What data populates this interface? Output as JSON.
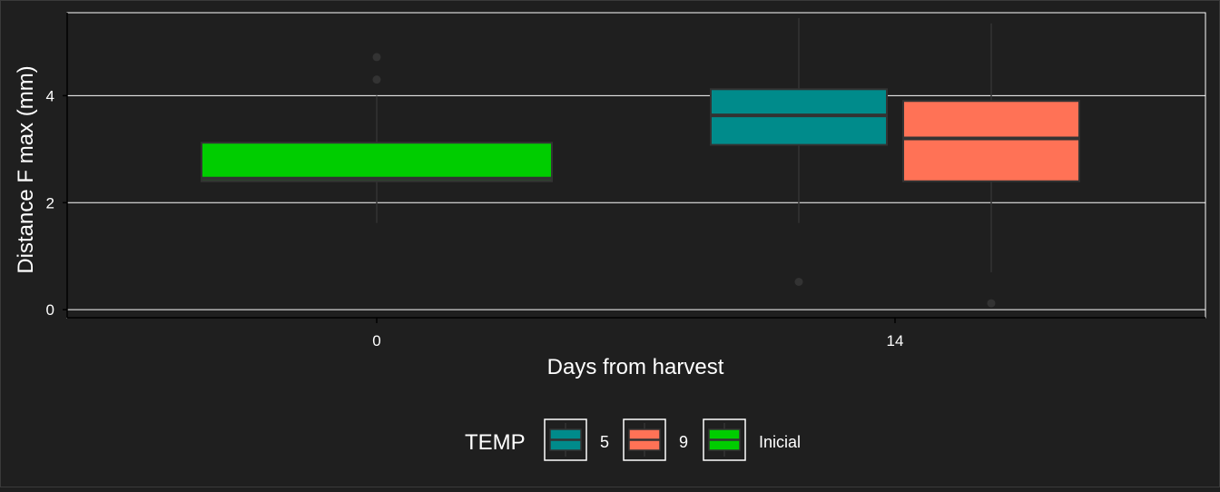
{
  "chart_data": {
    "type": "boxplot",
    "xlabel": "Days from harvest",
    "ylabel": "Distance F max (mm)",
    "x_ticks": [
      "0",
      "14"
    ],
    "y_ticks": [
      0,
      2,
      4
    ],
    "ylim": [
      -0.15,
      5.55
    ],
    "grid": "horizontal major lines",
    "legend": {
      "title": "TEMP",
      "position": "bottom",
      "entries": [
        {
          "label": "5",
          "color": "#008b8b"
        },
        {
          "label": "9",
          "color": "#ff7256"
        },
        {
          "label": "Inicial",
          "color": "#00cd00"
        }
      ]
    },
    "boxes": [
      {
        "x": "0",
        "group": "Inicial",
        "color": "#00cd00",
        "whisker_low": 1.62,
        "q1": 2.4,
        "median": 2.45,
        "q3": 3.12,
        "whisker_high": 4.0,
        "outliers": [
          4.3,
          4.72
        ]
      },
      {
        "x": "14",
        "group": "5",
        "color": "#008b8b",
        "whisker_low": 1.62,
        "q1": 3.08,
        "median": 3.63,
        "q3": 4.12,
        "whisker_high": 5.45,
        "outliers": [
          0.52
        ]
      },
      {
        "x": "14",
        "group": "9",
        "color": "#ff7256",
        "whisker_low": 0.7,
        "q1": 2.4,
        "median": 3.2,
        "q3": 3.9,
        "whisker_high": 5.35,
        "outliers": [
          0.12
        ]
      }
    ]
  },
  "colors": {
    "background": "#1f1f1f",
    "grid": "#ffffff",
    "text": "#ffffff",
    "box_outline": "#333333"
  }
}
